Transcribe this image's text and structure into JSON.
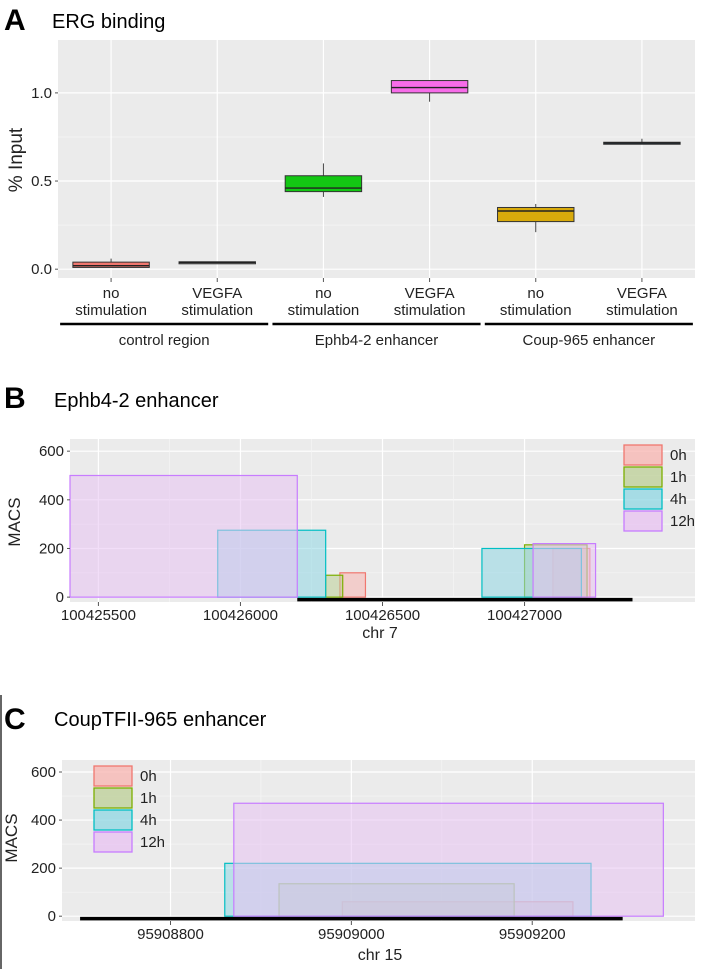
{
  "chart_data": [
    {
      "panel": "A",
      "type": "box",
      "title": "ERG binding",
      "ylabel": "% Input",
      "xlabel": "",
      "ylim": [
        -0.05,
        1.3
      ],
      "yticks": [
        0.0,
        0.5,
        1.0
      ],
      "ytick_labels": [
        "0.0",
        "0.5",
        "1.0"
      ],
      "categories": [
        {
          "line1": "no",
          "line2": "stimulation",
          "group": 0
        },
        {
          "line1": "VEGFA",
          "line2": "stimulation",
          "group": 0
        },
        {
          "line1": "no",
          "line2": "stimulation",
          "group": 1
        },
        {
          "line1": "VEGFA",
          "line2": "stimulation",
          "group": 1
        },
        {
          "line1": "no",
          "line2": "stimulation",
          "group": 2
        },
        {
          "line1": "VEGFA",
          "line2": "stimulation",
          "group": 2
        }
      ],
      "groups": [
        "control region",
        "Ephb4-2 enhancer",
        "Coup-965 enhancer"
      ],
      "boxes": [
        {
          "min": 0.01,
          "q1": 0.01,
          "median": 0.02,
          "q3": 0.04,
          "max": 0.06,
          "color": "#f0776f"
        },
        {
          "min": 0.035,
          "q1": 0.035,
          "median": 0.038,
          "q3": 0.042,
          "max": 0.042,
          "color": "#a9a9a9"
        },
        {
          "min": 0.41,
          "q1": 0.44,
          "median": 0.46,
          "q3": 0.53,
          "max": 0.6,
          "color": "#13c713"
        },
        {
          "min": 0.95,
          "q1": 1.0,
          "median": 1.03,
          "q3": 1.07,
          "max": 1.07,
          "color": "#f76ce9"
        },
        {
          "min": 0.21,
          "q1": 0.27,
          "median": 0.33,
          "q3": 0.35,
          "max": 0.37,
          "color": "#d8aa0b"
        },
        {
          "min": 0.71,
          "q1": 0.71,
          "median": 0.715,
          "q3": 0.72,
          "max": 0.74,
          "color": "#3096cc"
        }
      ]
    },
    {
      "panel": "B",
      "type": "range-rect",
      "title": "Ephb4-2 enhancer",
      "xlabel": "chr 7",
      "ylabel": "MACS",
      "xlim": [
        100425400,
        100427600
      ],
      "ylim": [
        -20,
        650
      ],
      "xticks": [
        100425500,
        100426000,
        100426500,
        100427000
      ],
      "xtick_labels": [
        "100425500",
        "100426000",
        "100426500",
        "100427000"
      ],
      "yticks": [
        0,
        200,
        400,
        600
      ],
      "ytick_labels": [
        "0",
        "200",
        "400",
        "600"
      ],
      "track": [
        100426200,
        100427380
      ],
      "series": [
        {
          "name": "0h",
          "fill": "#f8b4b0",
          "stroke": "#f0776f",
          "regions": [
            [
              100426350,
              100426440,
              100
            ],
            [
              100427100,
              100427230,
              200
            ]
          ]
        },
        {
          "name": "1h",
          "fill": "#bccf96",
          "stroke": "#7cae00",
          "regions": [
            [
              100426300,
              100426360,
              90
            ],
            [
              100427000,
              100427220,
              215
            ]
          ]
        },
        {
          "name": "4h",
          "fill": "#8fd7e3",
          "stroke": "#00bfc4",
          "regions": [
            [
              100425920,
              100426300,
              275
            ],
            [
              100426850,
              100427200,
              200
            ]
          ]
        },
        {
          "name": "12h",
          "fill": "#e8c2f2",
          "stroke": "#c77cff",
          "regions": [
            [
              100425400,
              100426200,
              500
            ],
            [
              100427030,
              100427250,
              220
            ]
          ]
        }
      ]
    },
    {
      "panel": "C",
      "type": "range-rect",
      "title": "CoupTFII-965 enhancer",
      "xlabel": "chr 15",
      "ylabel": "MACS",
      "xlim": [
        95908680,
        95909380
      ],
      "ylim": [
        -20,
        650
      ],
      "xticks": [
        95908800,
        95909000,
        95909200
      ],
      "xtick_labels": [
        "95908800",
        "95909000",
        "95909200"
      ],
      "yticks": [
        0,
        200,
        400,
        600
      ],
      "ytick_labels": [
        "0",
        "200",
        "400",
        "600"
      ],
      "track": [
        95908700,
        95909300
      ],
      "series": [
        {
          "name": "0h",
          "fill": "#f8b4b0",
          "stroke": "#f0776f",
          "regions": [
            [
              95908990,
              95909245,
              60
            ]
          ]
        },
        {
          "name": "1h",
          "fill": "#bccf96",
          "stroke": "#7cae00",
          "regions": [
            [
              95908920,
              95909180,
              135
            ]
          ]
        },
        {
          "name": "4h",
          "fill": "#8fd7e3",
          "stroke": "#00bfc4",
          "regions": [
            [
              95908860,
              95909265,
              220
            ]
          ]
        },
        {
          "name": "12h",
          "fill": "#e8c2f2",
          "stroke": "#c77cff",
          "regions": [
            [
              95908870,
              95909345,
              470
            ]
          ]
        }
      ]
    }
  ]
}
